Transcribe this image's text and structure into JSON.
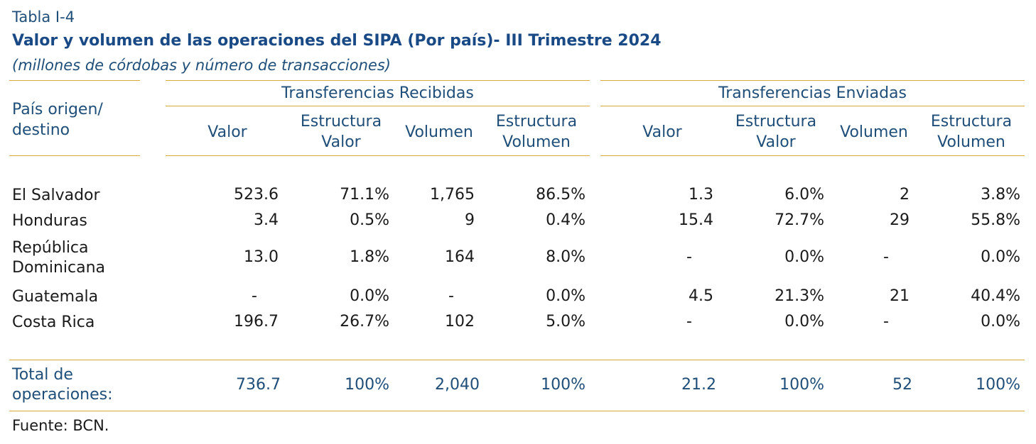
{
  "table_label": "Tabla I-4",
  "title": "Valor y volumen de las operaciones del SIPA (Por país)- III Trimestre 2024",
  "subtitle": "(millones de córdobas y número de transacciones)",
  "header": {
    "row_label_line1": "País origen/",
    "row_label_line2": "destino",
    "group_received": "Transferencias Recibidas",
    "group_sent": "Transferencias Enviadas",
    "col_valor": "Valor",
    "col_estructura_valor_1": "Estructura",
    "col_estructura_valor_2": "Valor",
    "col_volumen": "Volumen",
    "col_estructura_volumen_1": "Estructura",
    "col_estructura_volumen_2": "Volumen"
  },
  "rows": [
    {
      "country_1": "El Salvador",
      "country_2": "",
      "r_valor": "523.6",
      "r_est_valor": "71.1%",
      "r_volumen": "1,765",
      "r_est_volumen": "86.5%",
      "s_valor": "1.3",
      "s_est_valor": "6.0%",
      "s_volumen": "2",
      "s_est_volumen": "3.8%"
    },
    {
      "country_1": "Honduras",
      "country_2": "",
      "r_valor": "3.4",
      "r_est_valor": "0.5%",
      "r_volumen": "9",
      "r_est_volumen": "0.4%",
      "s_valor": "15.4",
      "s_est_valor": "72.7%",
      "s_volumen": "29",
      "s_est_volumen": "55.8%"
    },
    {
      "country_1": "República",
      "country_2": "Dominicana",
      "r_valor": "13.0",
      "r_est_valor": "1.8%",
      "r_volumen": "164",
      "r_est_volumen": "8.0%",
      "s_valor": "-",
      "s_est_valor": "0.0%",
      "s_volumen": "-",
      "s_est_volumen": "0.0%"
    },
    {
      "country_1": "Guatemala",
      "country_2": "",
      "r_valor": "-",
      "r_est_valor": "0.0%",
      "r_volumen": "-",
      "r_est_volumen": "0.0%",
      "s_valor": "4.5",
      "s_est_valor": "21.3%",
      "s_volumen": "21",
      "s_est_volumen": "40.4%"
    },
    {
      "country_1": "Costa Rica",
      "country_2": "",
      "r_valor": "196.7",
      "r_est_valor": "26.7%",
      "r_volumen": "102",
      "r_est_volumen": "5.0%",
      "s_valor": "-",
      "s_est_valor": "0.0%",
      "s_volumen": "-",
      "s_est_volumen": "0.0%"
    }
  ],
  "total": {
    "label_1": "Total de",
    "label_2": "operaciones:",
    "r_valor": "736.7",
    "r_est_valor": "100%",
    "r_volumen": "2,040",
    "r_est_volumen": "100%",
    "s_valor": "21.2",
    "s_est_valor": "100%",
    "s_volumen": "52",
    "s_est_volumen": "100%"
  },
  "source": "Fuente: BCN."
}
